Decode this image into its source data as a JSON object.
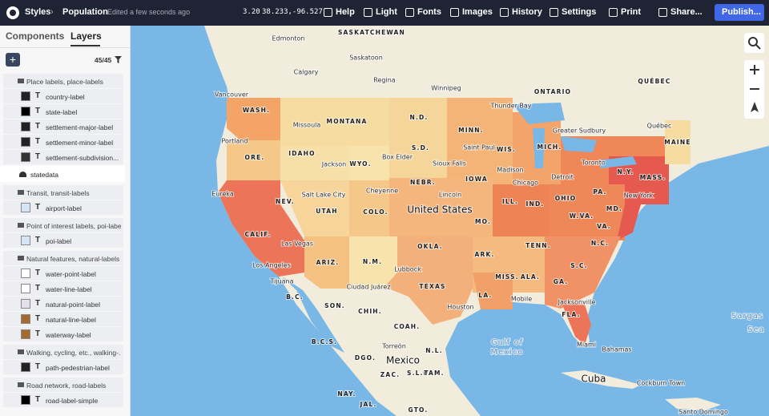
{
  "topbar": {
    "app": "Styles",
    "title": "Population",
    "status": "Edited a few seconds ago",
    "zoom": "3.20",
    "coords": "38.233,-96.527",
    "menu": [
      "Help",
      "Light",
      "Fonts",
      "Images",
      "History",
      "Settings",
      "Print",
      "Share..."
    ],
    "publish": "Publish..."
  },
  "sidebar": {
    "tabs": [
      "Components",
      "Layers"
    ],
    "count": "45/45",
    "layers": [
      {
        "name": "Place labels, place-labels",
        "items": [
          "country-label",
          "state-label",
          "settlement-major-label",
          "settlement-minor-label",
          "settlement-subdivision..."
        ]
      },
      {
        "name": "statedata"
      },
      {
        "name": "Transit, transit-labels",
        "items": [
          "airport-label"
        ]
      },
      {
        "name": "Point of interest labels, poi-labe...",
        "items": [
          "poi-label"
        ]
      },
      {
        "name": "Natural features, natural-labels",
        "items": [
          "water-point-label",
          "water-line-label",
          "natural-point-label",
          "natural-line-label",
          "waterway-label"
        ]
      },
      {
        "name": "Walking, cycling, etc., walking-...",
        "items": [
          "path-pedestrian-label"
        ]
      },
      {
        "name": "Road network, road-labels",
        "items": [
          "road-label-simple"
        ]
      }
    ]
  },
  "map": {
    "labels": [
      "SASKATCHEWAN",
      "Edmonton",
      "Saskatoon",
      "Calgary",
      "Regina",
      "Winnipeg",
      "Vancouver",
      "ONTARIO",
      "QUÉBEC",
      "Thunder Bay",
      "WASH.",
      "MONTANA",
      "N.D.",
      "Missoula",
      "MINN.",
      "Greater Sudbury",
      "Québec",
      "MAINE",
      "Portland",
      "Saint Paul",
      "WIS.",
      "MICH.",
      "ORE.",
      "IDAHO",
      "S.D.",
      "Box Elder",
      "WYO.",
      "Jackson",
      "Sioux Falls",
      "Madison",
      "Toronto",
      "N.Y.",
      "MASS.",
      "NEBR.",
      "IOWA",
      "Detroit",
      "Chicago",
      "Cheyenne",
      "Eureka",
      "Salt Lake City",
      "Lincoln",
      "PA.",
      "New York",
      "NEV.",
      "United States",
      "ILL.",
      "IND.",
      "OHIO",
      "UTAH",
      "COLO.",
      "MO.",
      "W.VA.",
      "MD.",
      "CALIF.",
      "Las Vegas",
      "VA.",
      "TENN.",
      "N.C.",
      "OKLA.",
      "ARK.",
      "Los Angeles",
      "ARIZ.",
      "N.M.",
      "S.C.",
      "Lubbock",
      "MISS.",
      "ALA.",
      "GA.",
      "Tijuana",
      "Ciudad Juárez",
      "TEXAS",
      "B.C.",
      "LA.",
      "Mobile",
      "Jacksonville",
      "Houston",
      "SON.",
      "CHIH.",
      "Sargas",
      "Sea",
      "FLA.",
      "COAH.",
      "Gulf of",
      "Mexico",
      "B.C.S.",
      "Torreón",
      "Miami",
      "Bahamas",
      "DGO.",
      "Mexico",
      "N.L.",
      "S.L.P.",
      "TAM.",
      "ZAC.",
      "Cuba",
      "Cockburn Town",
      "NAY.",
      "JAL.",
      "GTO.",
      "Santo Domingo"
    ]
  }
}
